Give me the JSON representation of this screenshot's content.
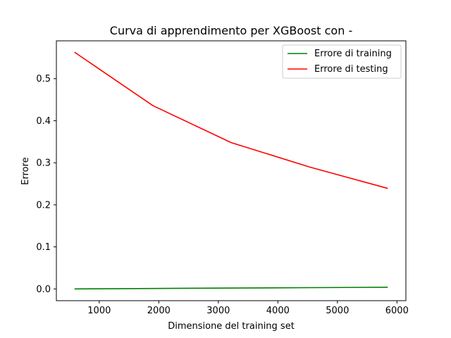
{
  "chart_data": {
    "type": "line",
    "title": "Curva di apprendimento per XGBoost con -",
    "xlabel": "Dimensione del training set",
    "ylabel": "Errore",
    "xlim": [
      280,
      6150
    ],
    "ylim": [
      -0.028,
      0.59
    ],
    "xticks": [
      1000,
      2000,
      3000,
      4000,
      5000,
      6000
    ],
    "yticks": [
      0.0,
      0.1,
      0.2,
      0.3,
      0.4,
      0.5
    ],
    "xtick_labels": [
      "1000",
      "2000",
      "3000",
      "4000",
      "5000",
      "6000"
    ],
    "ytick_labels": [
      "0.0",
      "0.1",
      "0.2",
      "0.3",
      "0.4",
      "0.5"
    ],
    "legend_position": "top-right",
    "grid": false,
    "series": [
      {
        "name": "Errore di training",
        "color": "#008000",
        "x": [
          585,
          1900,
          3215,
          4530,
          5845
        ],
        "y": [
          0.0,
          0.001,
          0.002,
          0.003,
          0.004
        ]
      },
      {
        "name": "Errore di testing",
        "color": "#ff0000",
        "x": [
          585,
          1900,
          3215,
          4530,
          5845
        ],
        "y": [
          0.563,
          0.436,
          0.348,
          0.29,
          0.239
        ]
      }
    ]
  }
}
